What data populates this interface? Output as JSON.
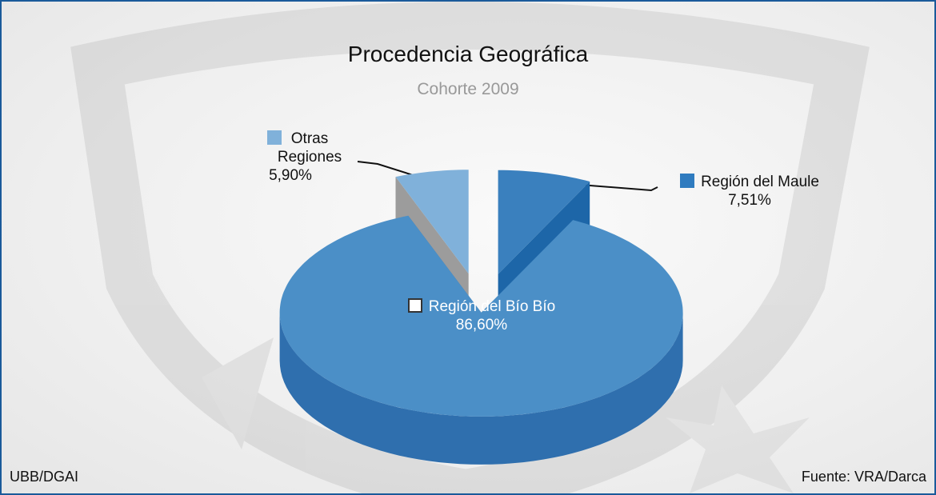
{
  "chart_data": {
    "type": "pie3d",
    "title": "Procedencia Geográfica",
    "subtitle": "Cohorte 2009",
    "categories": [
      "Región del Bío Bío",
      "Región del Maule",
      "Otras Regiones"
    ],
    "values": [
      86.6,
      7.51,
      5.9
    ],
    "value_labels": [
      "86,60%",
      "7,51%",
      "5,90%"
    ],
    "colors": [
      "#4b8fc7",
      "#3a80be",
      "#80b1da"
    ],
    "side_colors": [
      "#2f6fae",
      "#1d66a8",
      "#9c9c9c"
    ],
    "swatch_colors": [
      "#ffffff",
      "#2f7bbf",
      "#80b1da"
    ],
    "exploded": [
      false,
      true,
      true
    ]
  },
  "footer": {
    "left": "UBB/DGAI",
    "right": "Fuente: VRA/Darca"
  }
}
